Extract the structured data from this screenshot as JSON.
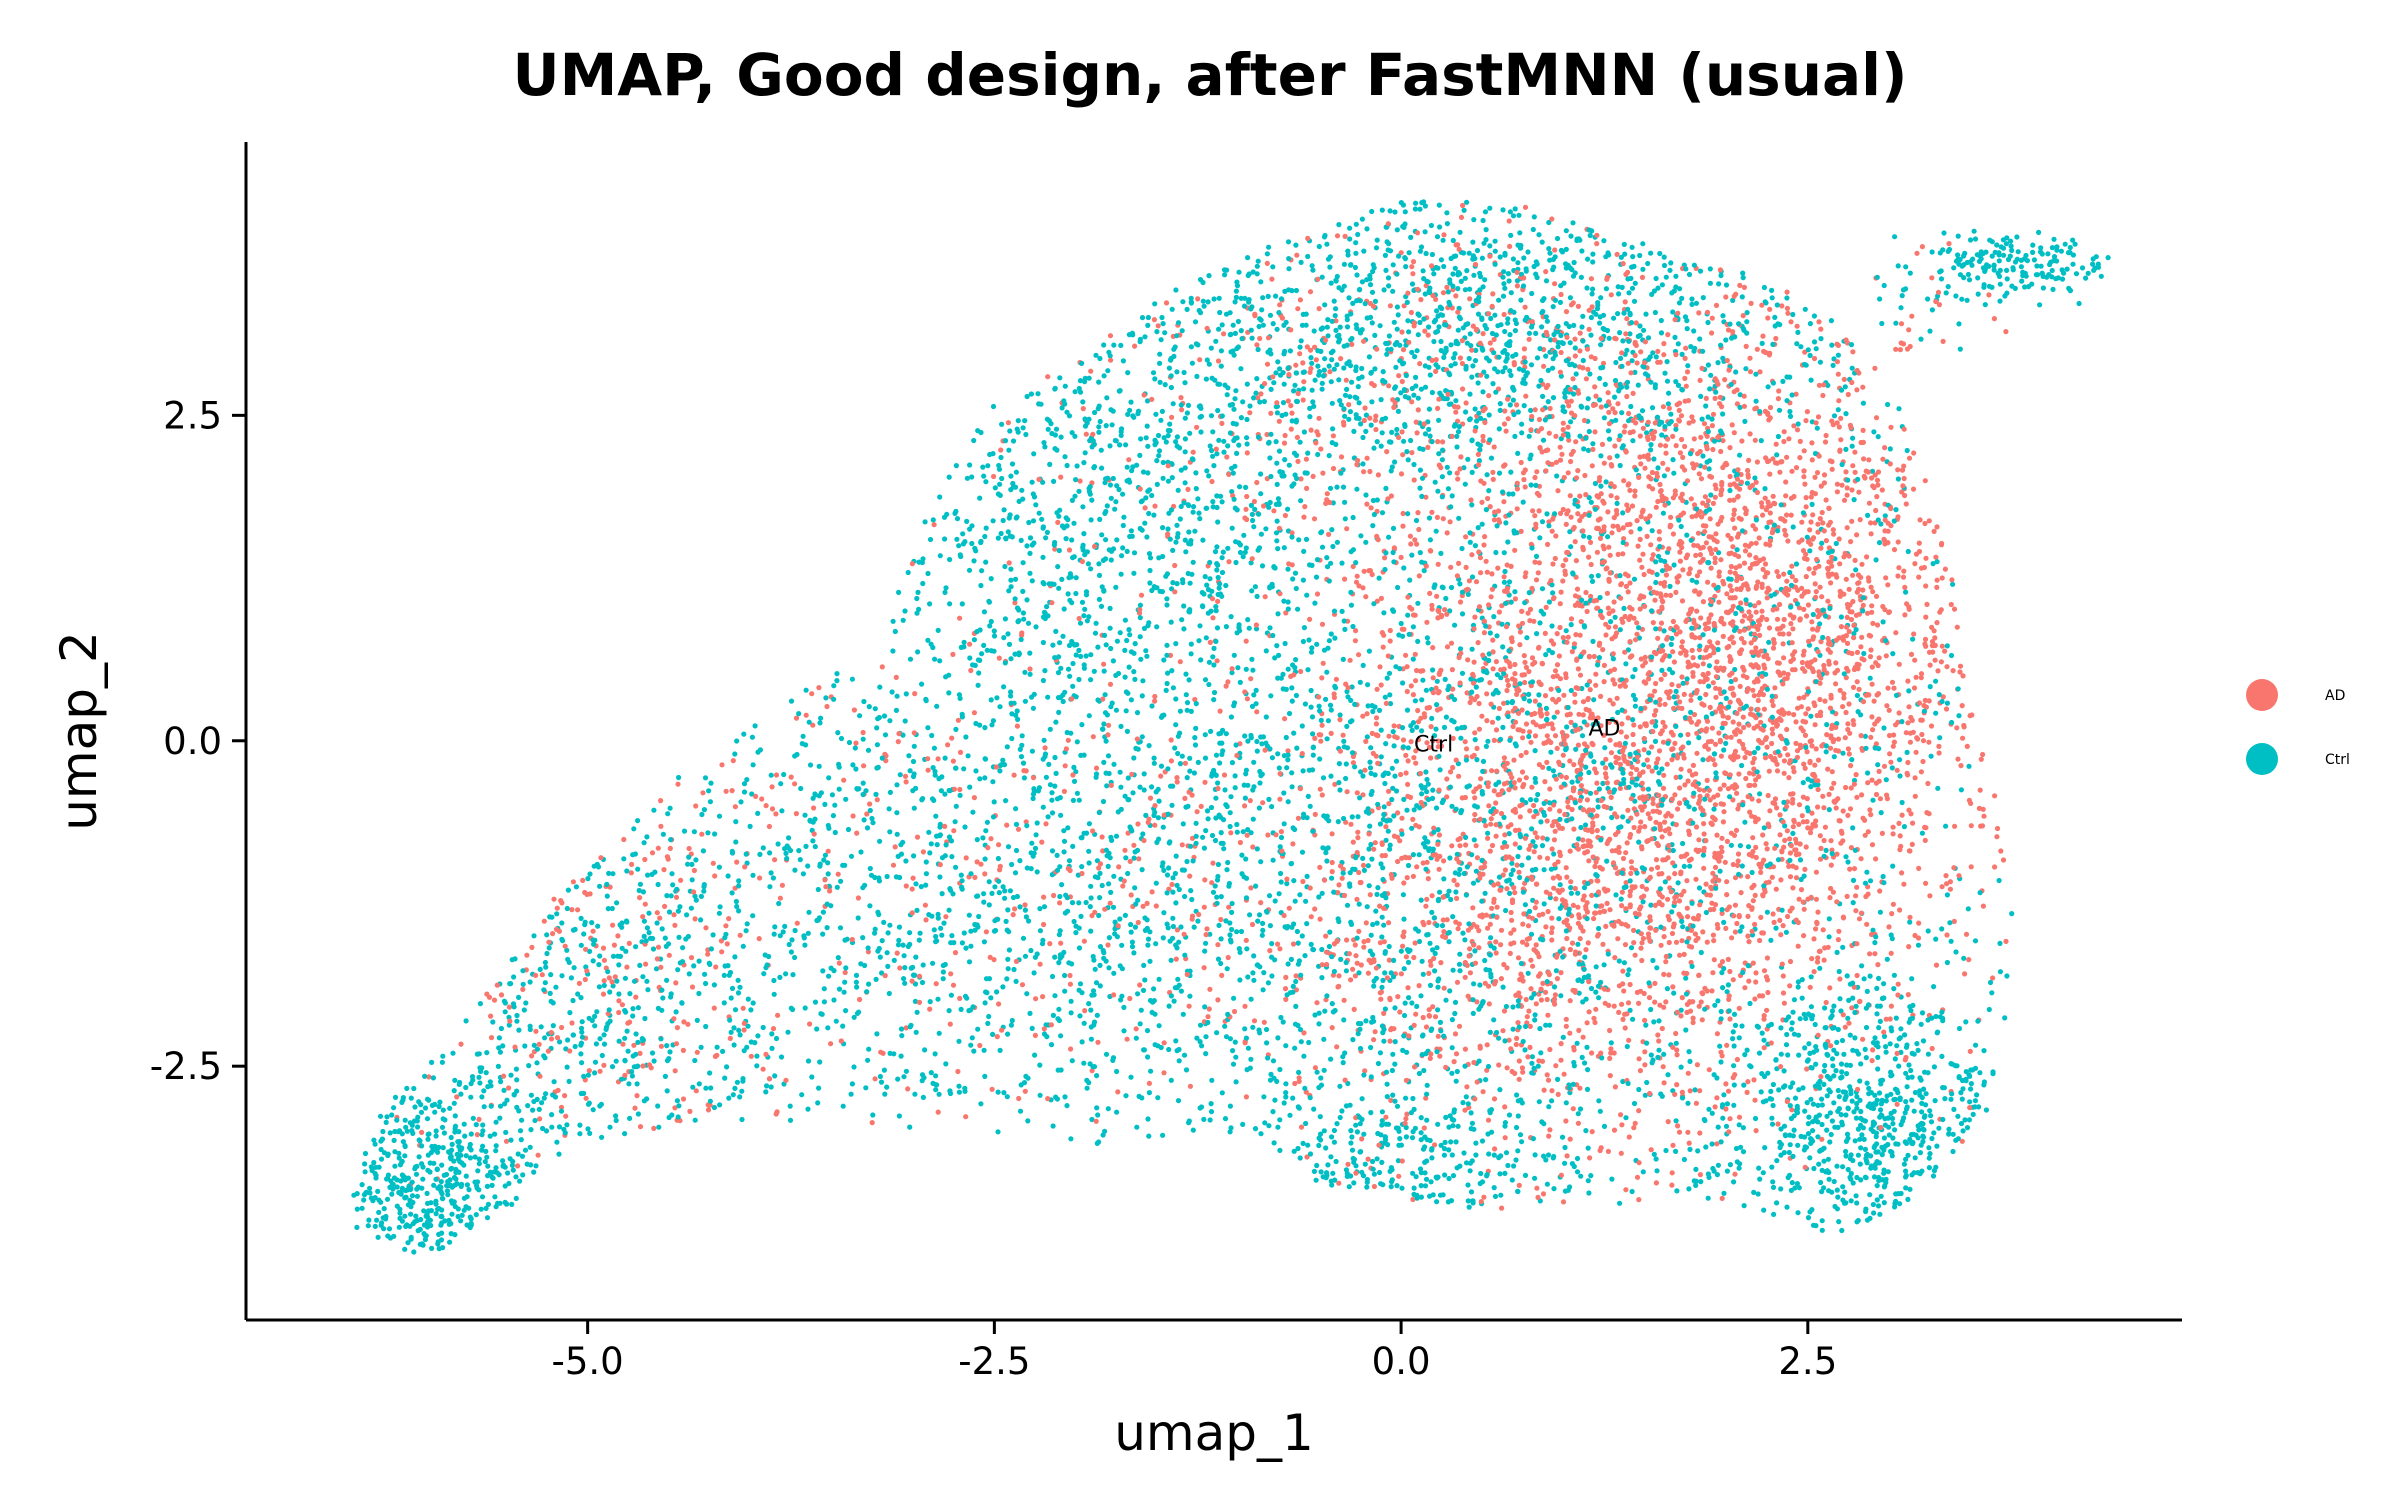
{
  "chart_data": {
    "type": "scatter",
    "title": "UMAP, Good design, after FastMNN (usual)",
    "xlabel": "umap_1",
    "ylabel": "umap_2",
    "xlim": [
      -7.1,
      4.8
    ],
    "ylim": [
      -4.45,
      4.6
    ],
    "x_ticks": [
      -5.0,
      -2.5,
      0.0,
      2.5
    ],
    "x_tick_labels": [
      "-5.0",
      "-2.5",
      "0.0",
      "2.5"
    ],
    "y_ticks": [
      -2.5,
      0.0,
      2.5
    ],
    "y_tick_labels": [
      "-2.5",
      "0.0",
      "2.5"
    ],
    "grid": false,
    "legend_position": "right",
    "series": [
      {
        "name": "AD",
        "color": "#F8766D",
        "cluster_label": {
          "text": "AD",
          "x": 1.25,
          "y": 0.1
        },
        "density_centers": [
          {
            "x": 1.6,
            "y": 0.3,
            "sx": 1.1,
            "sy": 1.6,
            "w": 0.38
          },
          {
            "x": 2.3,
            "y": 1.0,
            "sx": 0.7,
            "sy": 1.1,
            "w": 0.22
          },
          {
            "x": 0.9,
            "y": -1.3,
            "sx": 0.9,
            "sy": 1.0,
            "w": 0.16
          },
          {
            "x": 0.3,
            "y": 2.6,
            "sx": 1.2,
            "sy": 0.8,
            "w": 0.1
          },
          {
            "x": -2.5,
            "y": -1.0,
            "sx": 1.5,
            "sy": 1.2,
            "w": 0.09
          },
          {
            "x": -5.0,
            "y": -1.8,
            "sx": 0.6,
            "sy": 0.9,
            "w": 0.05
          }
        ]
      },
      {
        "name": "Ctrl",
        "color": "#00BFC4",
        "cluster_label": {
          "text": "Ctrl",
          "x": 0.2,
          "y": -0.02
        },
        "density_centers": [
          {
            "x": 0.4,
            "y": 3.3,
            "sx": 1.3,
            "sy": 0.7,
            "w": 0.2
          },
          {
            "x": -2.0,
            "y": 1.6,
            "sx": 1.0,
            "sy": 1.0,
            "w": 0.13
          },
          {
            "x": -2.6,
            "y": -1.3,
            "sx": 1.4,
            "sy": 1.0,
            "w": 0.16
          },
          {
            "x": -6.0,
            "y": -3.4,
            "sx": 0.35,
            "sy": 0.4,
            "w": 0.07
          },
          {
            "x": -5.0,
            "y": -2.2,
            "sx": 0.6,
            "sy": 0.8,
            "w": 0.06
          },
          {
            "x": 0.2,
            "y": -1.0,
            "sx": 1.2,
            "sy": 1.5,
            "w": 0.16
          },
          {
            "x": 2.9,
            "y": -2.9,
            "sx": 0.55,
            "sy": 0.55,
            "w": 0.1
          },
          {
            "x": 0.0,
            "y": -3.3,
            "sx": 0.6,
            "sy": 0.35,
            "w": 0.04
          },
          {
            "x": 3.8,
            "y": 3.65,
            "sx": 0.3,
            "sy": 0.12,
            "w": 0.02
          },
          {
            "x": 1.8,
            "y": 0.8,
            "sx": 1.1,
            "sy": 1.5,
            "w": 0.08
          }
        ]
      }
    ]
  }
}
